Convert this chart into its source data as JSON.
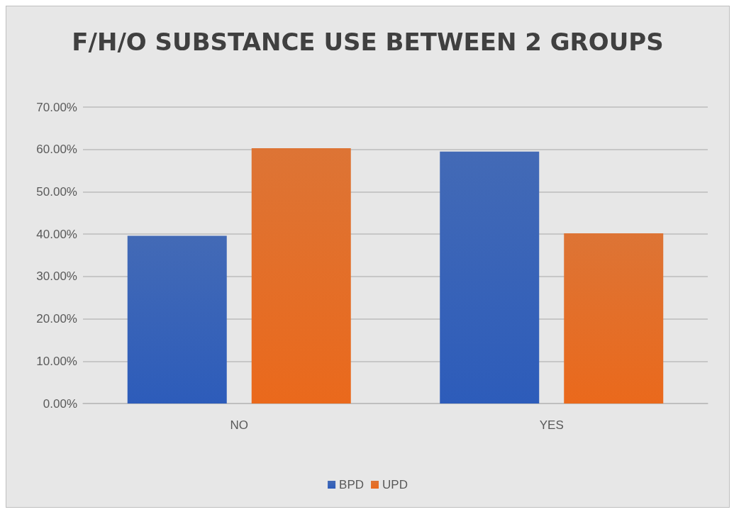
{
  "chart_data": {
    "type": "bar",
    "title": "F/H/O SUBSTANCE USE BETWEEN 2 GROUPS",
    "categories": [
      "NO",
      "YES"
    ],
    "series": [
      {
        "name": "BPD",
        "color": "#2a56ad",
        "values": [
          39.6,
          59.5
        ]
      },
      {
        "name": "UPD",
        "color": "#d9621a",
        "values": [
          60.3,
          40.2
        ]
      }
    ],
    "ylim": [
      0,
      70
    ],
    "yticks": [
      {
        "value": 0,
        "label": "0.00%"
      },
      {
        "value": 10,
        "label": "10.00%"
      },
      {
        "value": 20,
        "label": "20.00%"
      },
      {
        "value": 30,
        "label": "30.00%"
      },
      {
        "value": 40,
        "label": "40.00%"
      },
      {
        "value": 50,
        "label": "50.00%"
      },
      {
        "value": 60,
        "label": "60.00%"
      },
      {
        "value": 70,
        "label": "70.00%"
      }
    ],
    "grid": "y",
    "legend": "bottom"
  }
}
